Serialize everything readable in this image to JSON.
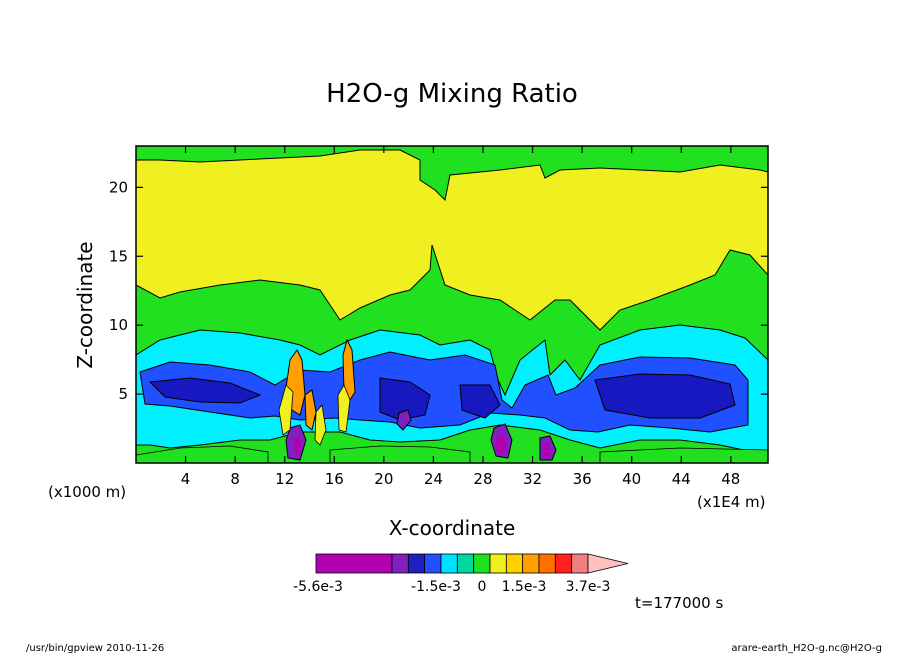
{
  "chart_data": {
    "type": "heatmap",
    "title": "H2O-g Mixing Ratio",
    "xlabel": "X-coordinate",
    "ylabel": "Z-coordinate",
    "x_unit_left": "(x1000 m)",
    "x_unit_right": "(x1E4 m)",
    "time_label": "t=177000 s",
    "x_ticks": [
      "4",
      "8",
      "12",
      "16",
      "20",
      "24",
      "28",
      "32",
      "36",
      "40",
      "44",
      "48"
    ],
    "y_ticks": [
      "5",
      "10",
      "15",
      "20"
    ],
    "x_tick_values": [
      4,
      8,
      12,
      16,
      20,
      24,
      28,
      32,
      36,
      40,
      44,
      48
    ],
    "y_tick_values": [
      5,
      10,
      15,
      20
    ],
    "xlim": [
      0,
      51
    ],
    "ylim": [
      0,
      23
    ],
    "colorbar": {
      "labels": [
        "-5.6e-3",
        "-1.5e-3",
        "0",
        "1.5e-3",
        "3.7e-3"
      ],
      "colors": [
        "#b000b0",
        "#8020c0",
        "#2020c0",
        "#2050ff",
        "#00e0ff",
        "#00d8a0",
        "#20e020",
        "#f0f020",
        "#ffd000",
        "#ffa000",
        "#ff7000",
        "#ff2020",
        "#f08080",
        "#ffc0c0"
      ]
    },
    "levels": {
      "background": "#20e020",
      "yellow": "#f0f020",
      "cyan": "#00f0ff",
      "blue": "#2050ff",
      "darkblue": "#1818c0",
      "purple": "#8020c0",
      "orange": "#ffa000",
      "magenta": "#b000b0"
    }
  },
  "footer": {
    "left": "/usr/bin/gpview  2010-11-26",
    "right": "arare-earth_H2O-g.nc@H2O-g"
  }
}
